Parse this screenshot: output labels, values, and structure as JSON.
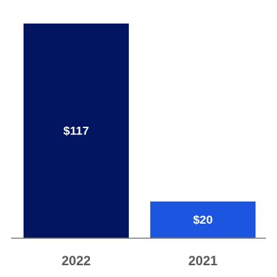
{
  "chart_data": {
    "type": "bar",
    "categories": [
      "2022",
      "2021"
    ],
    "values": [
      117,
      20
    ],
    "data_labels": [
      "$117",
      "$20"
    ],
    "colors": [
      "#021561",
      "#1c55e0"
    ],
    "baseline_color": "#7f7f7f",
    "ylim": [
      0,
      117
    ],
    "grid": false
  }
}
